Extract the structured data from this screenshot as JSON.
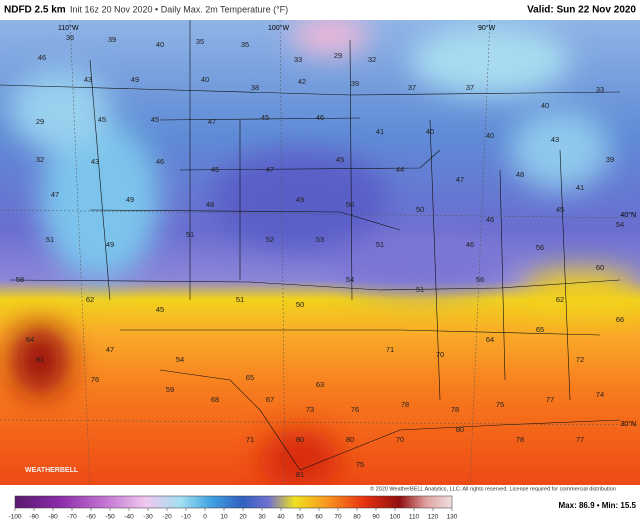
{
  "header": {
    "title": "NDFD 2.5 km",
    "subtitle": "Init 16z 20 Nov 2020 • Daily Max. 2m Temperature (°F)",
    "valid": "Valid: Sun 22 Nov 2020"
  },
  "map": {
    "graticule": [
      "110°W",
      "100°W",
      "90°W",
      "40°N",
      "30°N"
    ],
    "temperatures": [
      36,
      39,
      40,
      35,
      35,
      33,
      29,
      32,
      46,
      43,
      49,
      40,
      38,
      42,
      39,
      37,
      37,
      40,
      33,
      29,
      45,
      45,
      47,
      45,
      46,
      41,
      40,
      40,
      43,
      39,
      32,
      43,
      46,
      45,
      47,
      45,
      44,
      47,
      48,
      41,
      47,
      49,
      48,
      49,
      50,
      50,
      46,
      45,
      54,
      51,
      49,
      51,
      52,
      53,
      51,
      46,
      56,
      60,
      58,
      62,
      45,
      51,
      50,
      54,
      51,
      56,
      62,
      66,
      64,
      47,
      54,
      65,
      63,
      71,
      70,
      64,
      65,
      72,
      81,
      76,
      59,
      68,
      67,
      73,
      76,
      78,
      78,
      75,
      77,
      74,
      71,
      80,
      80,
      70,
      80,
      78,
      77,
      81,
      75
    ],
    "logo": "WEATHERBELL"
  },
  "colorbar": {
    "lim": [
      -100,
      130
    ],
    "ticks": [
      -100,
      -90,
      -80,
      -70,
      -60,
      -50,
      -40,
      -30,
      -20,
      -10,
      0,
      10,
      20,
      30,
      40,
      50,
      60,
      70,
      80,
      90,
      100,
      110,
      120,
      130
    ]
  },
  "footer": {
    "copyright": "© 2020 WeatherBELL Analytics, LLC. All rights reserved. License required for commercial distribution",
    "stats": "Max: 86.9 • Min: 15.5"
  }
}
